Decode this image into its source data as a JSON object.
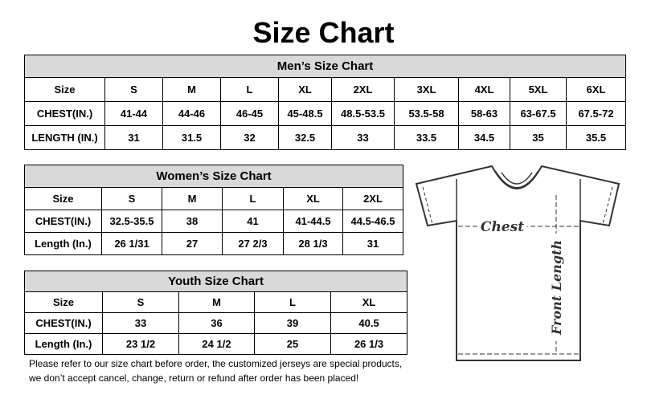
{
  "title": "Size Chart",
  "men": {
    "caption": "Men’s Size Chart",
    "header": [
      "Size",
      "S",
      "M",
      "L",
      "XL",
      "2XL",
      "3XL",
      "4XL",
      "5XL",
      "6XL"
    ],
    "rows": [
      [
        "CHEST(IN.)",
        "41-44",
        "44-46",
        "46-45",
        "45-48.5",
        "48.5-53.5",
        "53.5-58",
        "58-63",
        "63-67.5",
        "67.5-72"
      ],
      [
        "LENGTH (IN.)",
        "31",
        "31.5",
        "32",
        "32.5",
        "33",
        "33.5",
        "34.5",
        "35",
        "35.5"
      ]
    ]
  },
  "women": {
    "caption": "Women’s Size Chart",
    "header": [
      "Size",
      "S",
      "M",
      "L",
      "XL",
      "2XL"
    ],
    "rows": [
      [
        "CHEST(IN.)",
        "32.5-35.5",
        "38",
        "41",
        "41-44.5",
        "44.5-46.5"
      ],
      [
        "Length (In.)",
        "26 1/31",
        "27",
        "27 2/3",
        "28 1/3",
        "31"
      ]
    ]
  },
  "youth": {
    "caption": "Youth Size Chart",
    "header": [
      "Size",
      "S",
      "M",
      "L",
      "XL"
    ],
    "rows": [
      [
        "CHEST(IN.)",
        "33",
        "36",
        "39",
        "40.5"
      ],
      [
        "Length (In.)",
        "23 1/2",
        "24 1/2",
        "25",
        "26 1/3"
      ]
    ]
  },
  "note": [
    "Please refer to our size chart before order, the customized jerseys are special products,",
    "we don’t accept cancel, change, return or refund after order has been placed!"
  ],
  "diagram": {
    "chest_label": "Chest",
    "length_label": "Front Length"
  }
}
